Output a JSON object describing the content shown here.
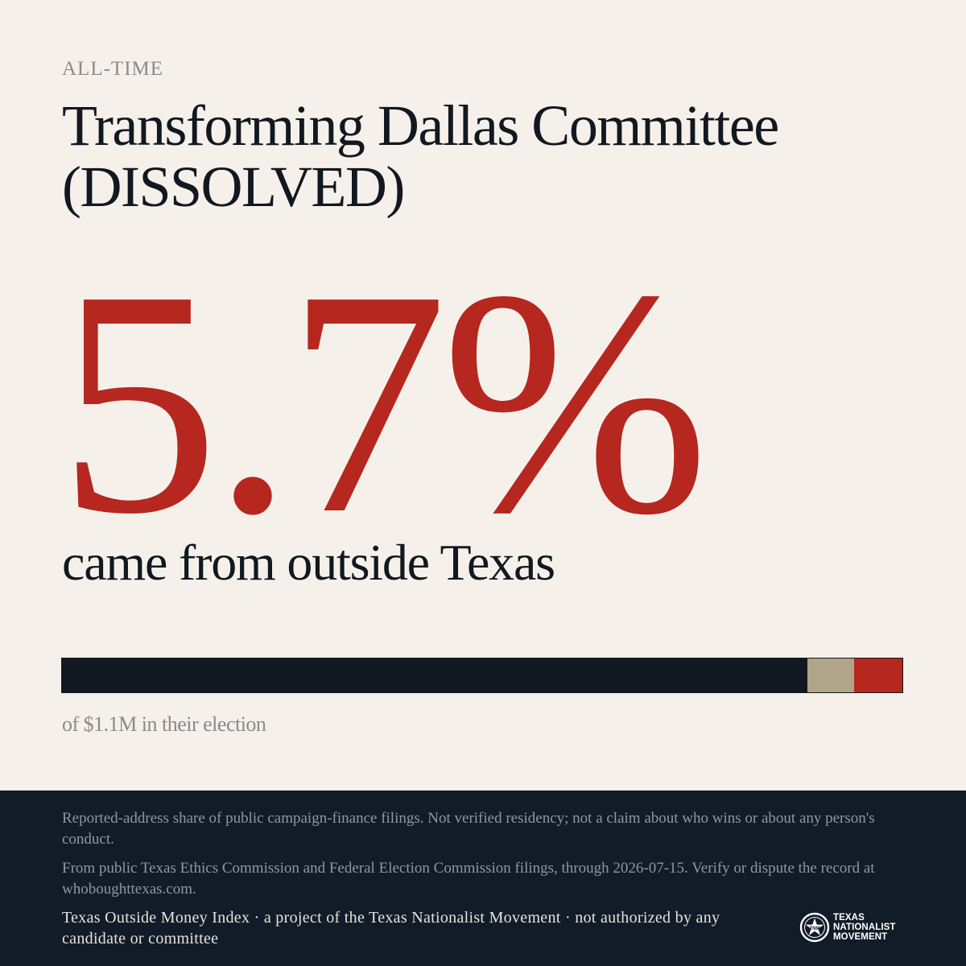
{
  "header": {
    "eyebrow": "ALL-TIME",
    "title": "Transforming Dallas Committee (DISSOLVED)"
  },
  "stat": {
    "percent_text": "5.7%",
    "description": "came from outside Texas",
    "caption": "of $1.1M in their election"
  },
  "share_bar": {
    "in_state_fraction": 0.887,
    "unknown_fraction": 0.056,
    "out_of_state_fraction": 0.057,
    "colors": {
      "in_state": "#121820",
      "unknown": "#b1a589",
      "out_of_state": "#b6271f"
    }
  },
  "footer": {
    "disclaimer": "Reported-address share of public campaign-finance filings. Not verified residency; not a claim about who wins or about any person's conduct.",
    "source": "From public Texas Ethics Commission and Federal Election Commission filings, through 2026-07-15. Verify or dispute the record at whoboughttexas.com.",
    "credit": "Texas Outside Money Index · a project of the Texas Nationalist Movement · not authorized by any candidate or committee",
    "logo": {
      "icon": "star-seal-icon",
      "line1": "TEXAS",
      "line2": "NATIONALIST",
      "line3": "MOVEMENT"
    }
  },
  "colors": {
    "background": "#f5f1ea",
    "accent_red": "#b6271f",
    "ink": "#121820",
    "footer_bg": "#121c29",
    "muted": "#8c8a86"
  }
}
